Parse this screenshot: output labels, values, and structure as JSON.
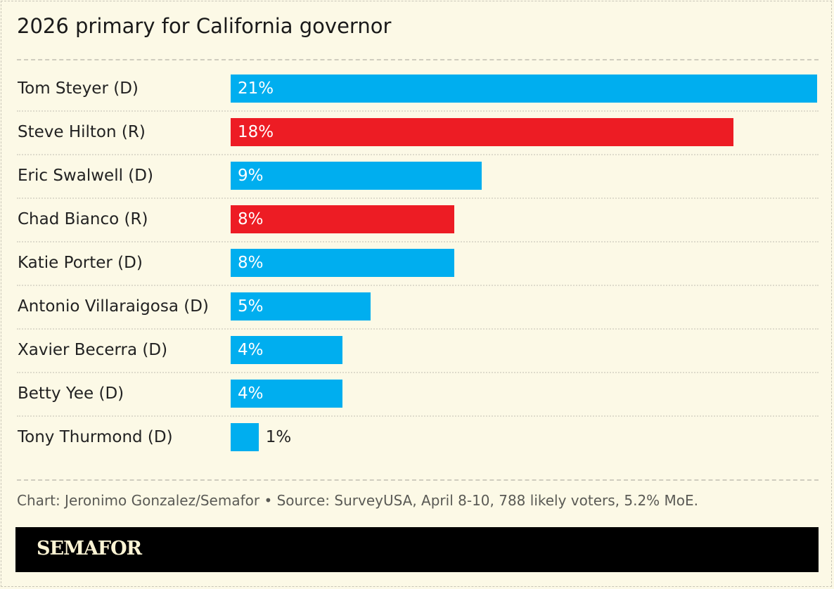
{
  "title": "2026 primary for California governor",
  "chart_data": {
    "type": "bar",
    "orientation": "horizontal",
    "title": "2026 primary for California governor",
    "categories": [
      "Tom Steyer (D)",
      "Steve Hilton (R)",
      "Eric Swalwell (D)",
      "Chad Bianco (R)",
      "Katie Porter (D)",
      "Antonio Villaraigosa (D)",
      "Xavier Becerra (D)",
      "Betty Yee (D)",
      "Tony Thurmond (D)"
    ],
    "values": [
      21,
      18,
      9,
      8,
      8,
      5,
      4,
      4,
      1
    ],
    "labels": [
      "21%",
      "18%",
      "9%",
      "8%",
      "8%",
      "5%",
      "4%",
      "4%",
      "1%"
    ],
    "party": [
      "D",
      "R",
      "D",
      "R",
      "D",
      "D",
      "D",
      "D",
      "D"
    ],
    "xlim": [
      0,
      21
    ],
    "grid": false,
    "colors": {
      "D": "#00aeef",
      "R": "#ed1c24"
    }
  },
  "source": "Chart: Jeronimo Gonzalez/Semafor • Source: SurveyUSA, April 8-10, 788 likely voters, 5.2% MoE.",
  "brand": "SEMAFOR"
}
